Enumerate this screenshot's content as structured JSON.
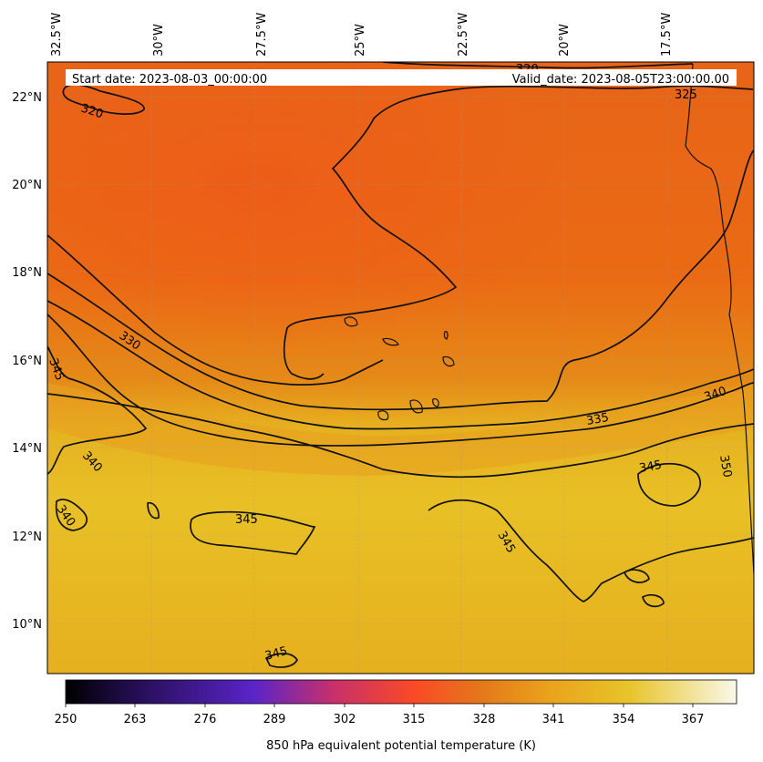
{
  "map": {
    "top_axis_labels": [
      "32.5°W",
      "30°W",
      "27.5°W",
      "25°W",
      "22.5°W",
      "20°W",
      "17.5°W"
    ],
    "left_axis_labels": [
      "22°N",
      "20°N",
      "18°N",
      "16°N",
      "14°N",
      "12°N",
      "10°N"
    ],
    "start_date": "Start date: 2023-08-03_00:00:00",
    "valid_date": "Valid_date: 2023-08-05T23:00:00.00",
    "contour_labels": [
      {
        "text": "320"
      },
      {
        "text": "320"
      },
      {
        "text": "325"
      },
      {
        "text": "330"
      },
      {
        "text": "335"
      },
      {
        "text": "340"
      },
      {
        "text": "340"
      },
      {
        "text": "340"
      },
      {
        "text": "345"
      },
      {
        "text": "345"
      },
      {
        "text": "345"
      },
      {
        "text": "345"
      },
      {
        "text": "345"
      },
      {
        "text": "350"
      }
    ],
    "colorbar": {
      "ticks": [
        "250",
        "263",
        "276",
        "289",
        "302",
        "315",
        "328",
        "341",
        "354",
        "367"
      ],
      "label": "850 hPa equivalent potential temperature (K)",
      "colors": [
        "#000000",
        "#2a1060",
        "#5a24c8",
        "#c8306a",
        "#fa4a26",
        "#e4781a",
        "#eaa21c",
        "#e8c42a",
        "#f4f0c0"
      ]
    }
  }
}
